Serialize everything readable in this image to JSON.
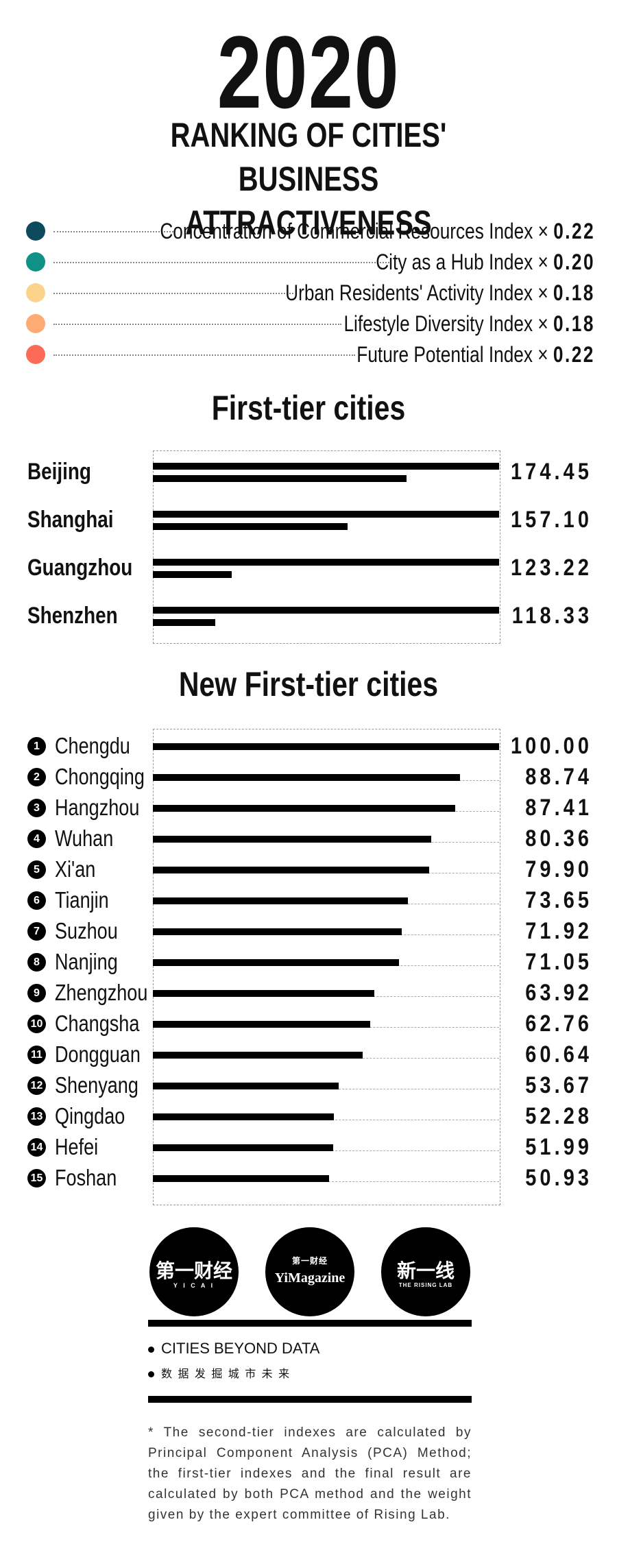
{
  "header": {
    "year": "2020",
    "subtitle_line1": "RANKING OF CITIES' BUSINESS",
    "subtitle_line2": "ATTRACTIVENESS"
  },
  "legend": [
    {
      "label": "Concentration of Commercial Resources Index",
      "weight": "0.22",
      "color": "#0d4a5e"
    },
    {
      "label": "City as a Hub Index",
      "weight": "0.20",
      "color": "#0f9186"
    },
    {
      "label": "Urban Residents' Activity Index",
      "weight": "0.18",
      "color": "#fdd28a"
    },
    {
      "label": "Lifestyle Diversity Index",
      "weight": "0.18",
      "color": "#fcac73"
    },
    {
      "label": "Future Potential Index",
      "weight": "0.22",
      "color": "#fb6b56"
    }
  ],
  "legend_times": "×",
  "chart_data": [
    {
      "type": "bar",
      "title": "First-tier cities",
      "categories": [
        "Beijing",
        "Shanghai",
        "Guangzhou",
        "Shenzhen"
      ],
      "values": [
        174.45,
        157.1,
        123.22,
        118.33
      ],
      "labels": [
        "174.45",
        "157.10",
        "123.22",
        "118.33"
      ],
      "axis_min": 100,
      "xlim": [
        0,
        100
      ]
    },
    {
      "type": "bar",
      "title": "New First-tier cities",
      "categories": [
        "Chengdu",
        "Chongqing",
        "Hangzhou",
        "Wuhan",
        "Xi'an",
        "Tianjin",
        "Suzhou",
        "Nanjing",
        "Zhengzhou",
        "Changsha",
        "Dongguan",
        "Shenyang",
        "Qingdao",
        "Hefei",
        "Foshan"
      ],
      "ranks": [
        "1",
        "2",
        "3",
        "4",
        "5",
        "6",
        "7",
        "8",
        "9",
        "10",
        "11",
        "12",
        "13",
        "14",
        "15"
      ],
      "values": [
        100.0,
        88.74,
        87.41,
        80.36,
        79.9,
        73.65,
        71.92,
        71.05,
        63.92,
        62.76,
        60.64,
        53.67,
        52.28,
        51.99,
        50.93
      ],
      "labels": [
        "100.00",
        "88.74",
        "87.41",
        "80.36",
        "79.90",
        "73.65",
        "71.92",
        "71.05",
        "63.92",
        "62.76",
        "60.64",
        "53.67",
        "52.28",
        "51.99",
        "50.93"
      ],
      "xlim": [
        0,
        100
      ]
    }
  ],
  "logos": [
    {
      "main": "第一财经",
      "sub": "Y I C A I"
    },
    {
      "main": "YiMagazine",
      "sub": "第一财经"
    },
    {
      "main": "新一线",
      "sub": "THE RISING LAB"
    }
  ],
  "footer": {
    "tag_en": "CITIES BEYOND DATA",
    "tag_cn": "数 据 发 掘 城 市 未 来",
    "note": "* The second-tier indexes are calculated by Principal Component Analysis (PCA) Method; the first-tier indexes and the final result are calculated by both PCA method and the weight given by the expert committee of Rising Lab."
  }
}
